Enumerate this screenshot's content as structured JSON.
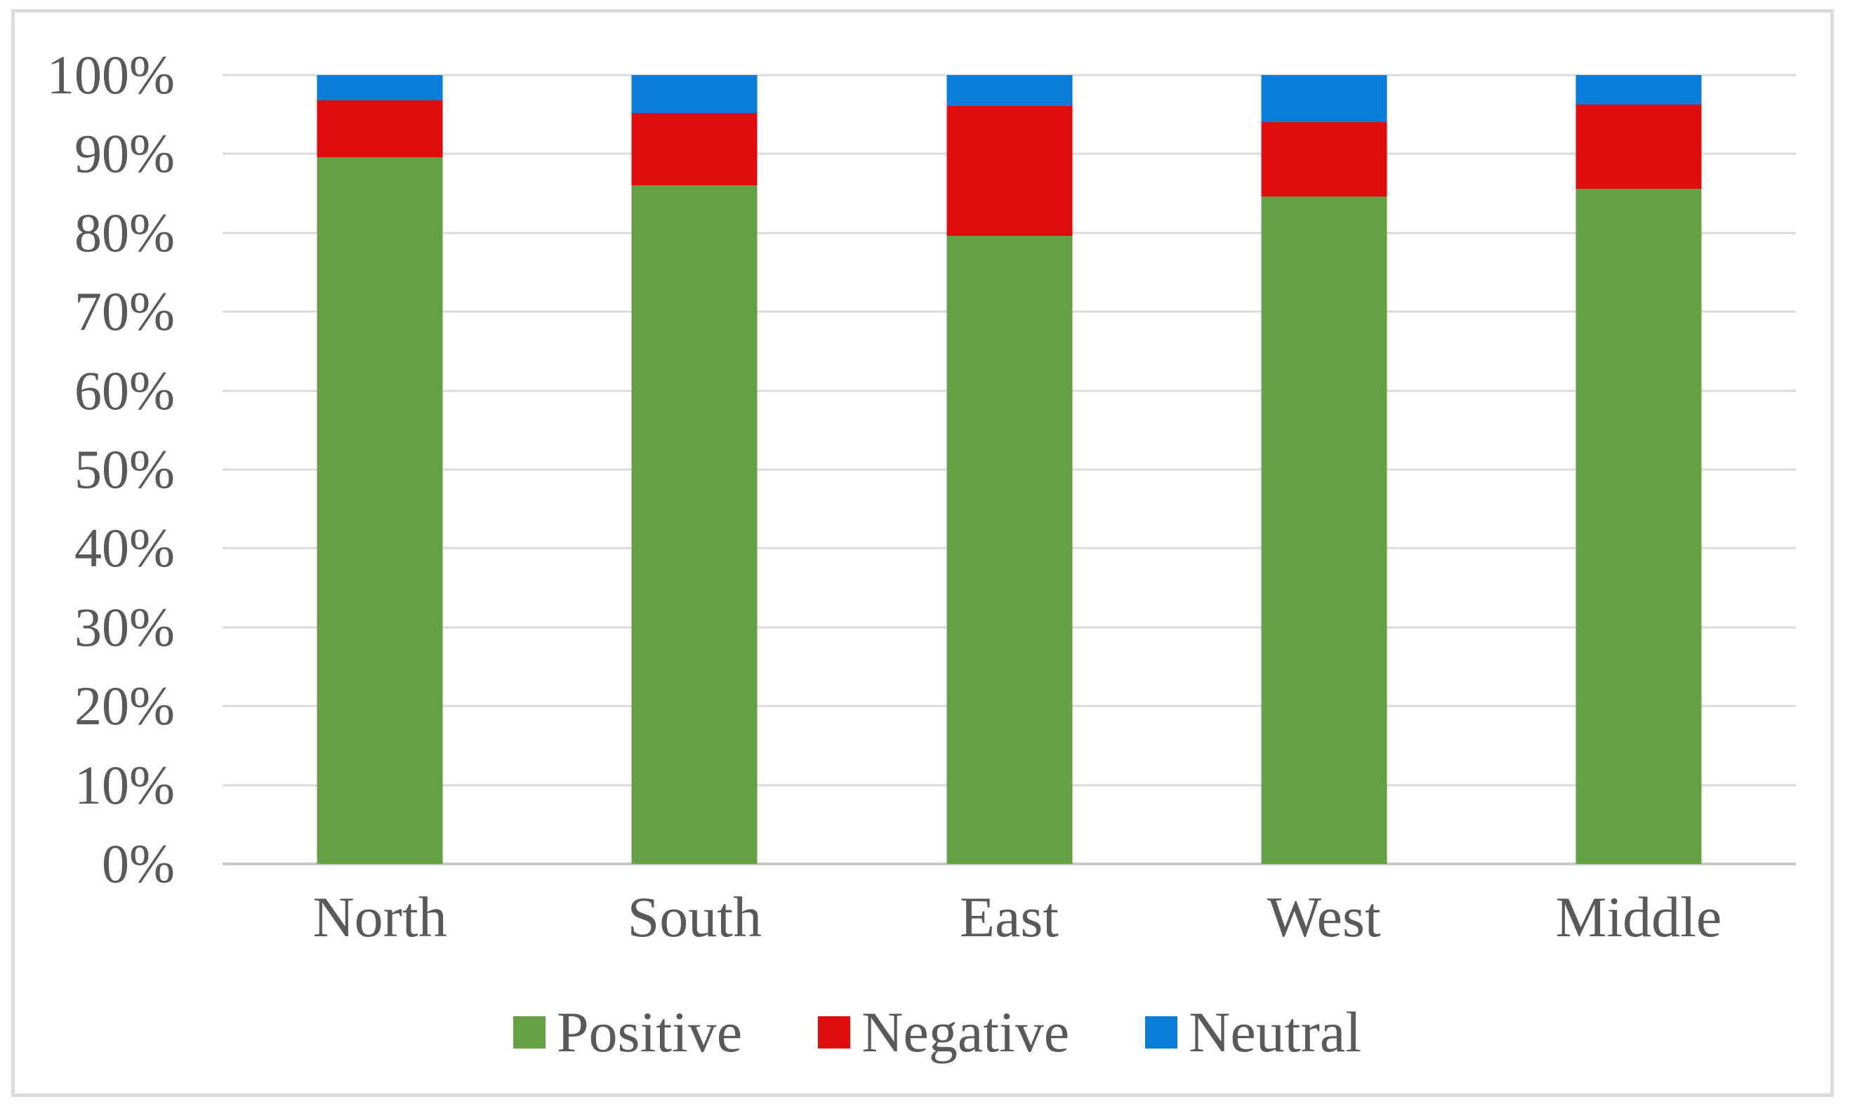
{
  "figure": {
    "background": "#ffffff",
    "border_color": "#dbdbdb",
    "text_color": "#595959",
    "gridline_color": "#d9d9d9",
    "axis_line_color": "#c9c9c9"
  },
  "chart_data": {
    "type": "bar",
    "subtype": "stacked-100-percent",
    "title": "",
    "xlabel": "",
    "ylabel": "",
    "categories": [
      "North",
      "South",
      "East",
      "West",
      "Middle"
    ],
    "series": [
      {
        "name": "Positive",
        "color": "#64a144",
        "values": [
          89.6,
          86.0,
          79.6,
          84.6,
          85.6
        ]
      },
      {
        "name": "Negative",
        "color": "#e00d0c",
        "values": [
          7.2,
          9.2,
          16.5,
          9.4,
          10.7
        ]
      },
      {
        "name": "Neutral",
        "color": "#0a7dda",
        "values": [
          3.2,
          4.8,
          3.9,
          6.0,
          3.7
        ]
      }
    ],
    "y_axis": {
      "min": 0,
      "max": 100,
      "step": 10,
      "tick_labels": [
        "0%",
        "10%",
        "20%",
        "30%",
        "40%",
        "50%",
        "60%",
        "70%",
        "80%",
        "90%",
        "100%"
      ]
    },
    "grid": true,
    "legend_position": "bottom"
  }
}
